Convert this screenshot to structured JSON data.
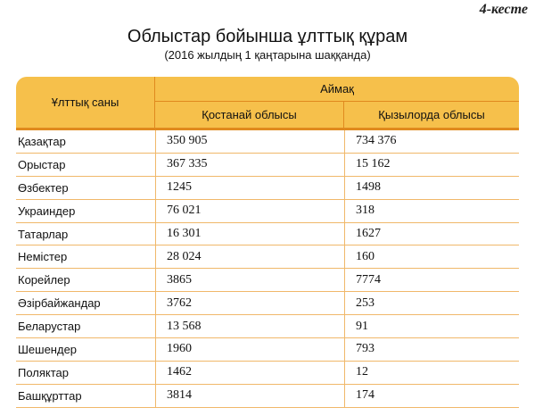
{
  "table_label": "4-кесте",
  "title": "Облыстар бойынша ұлттық құрам",
  "subtitle": "(2016 жылдың 1 қаңтарына шаққанда)",
  "table": {
    "header_nationality": "Ұлттық саны",
    "header_region": "Аймақ",
    "header_kostanay": "Қостанай облысы",
    "header_kyzylorda": "Қызылорда облысы",
    "rows": [
      {
        "name": "Қазақтар",
        "kostanay": "350 905",
        "kyzylorda": "734 376"
      },
      {
        "name": "Орыстар",
        "kostanay": "367 335",
        "kyzylorda": "15 162"
      },
      {
        "name": "Өзбектер",
        "kostanay": "1245",
        "kyzylorda": "1498"
      },
      {
        "name": "Украиндер",
        "kostanay": "76 021",
        "kyzylorda": "318"
      },
      {
        "name": "Татарлар",
        "kostanay": "16 301",
        "kyzylorda": "1627"
      },
      {
        "name": "Немістер",
        "kostanay": "28 024",
        "kyzylorda": "160"
      },
      {
        "name": "Корейлер",
        "kostanay": "3865",
        "kyzylorda": "7774"
      },
      {
        "name": "Әзірбайжандар",
        "kostanay": "3762",
        "kyzylorda": "253"
      },
      {
        "name": "Беларустар",
        "kostanay": "13 568",
        "kyzylorda": "91"
      },
      {
        "name": "Шешендер",
        "kostanay": "1960",
        "kyzylorda": "793"
      },
      {
        "name": "Поляктар",
        "kostanay": "1462",
        "kyzylorda": "12"
      },
      {
        "name": "Башқұрттар",
        "kostanay": "3814",
        "kyzylorda": "174"
      }
    ]
  },
  "colors": {
    "header_fill": "#f6c04b",
    "header_rule": "#e08a1e",
    "row_rule": "#f0b86a"
  }
}
